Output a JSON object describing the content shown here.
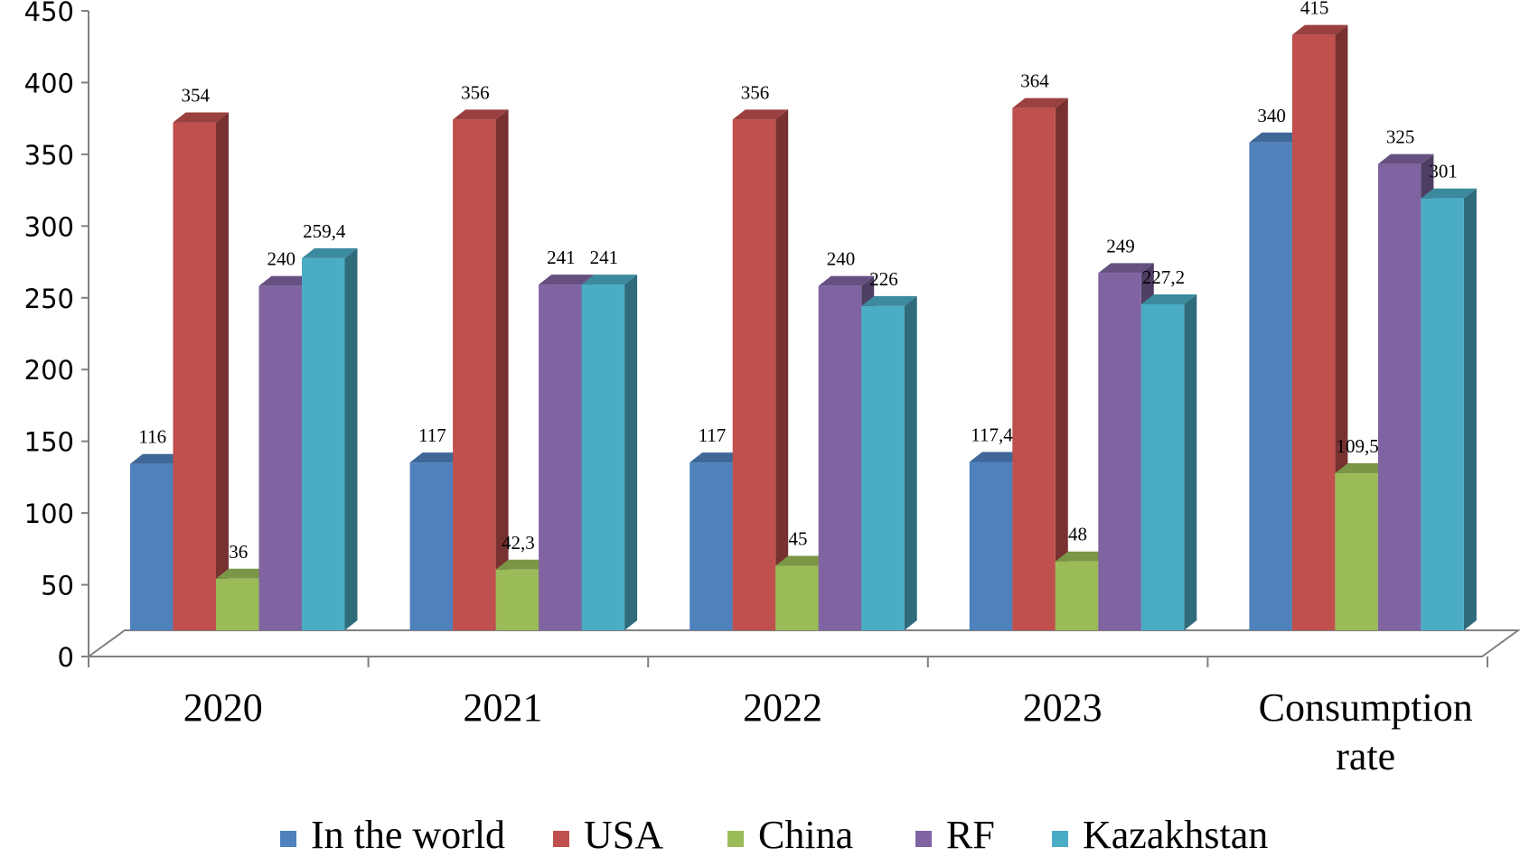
{
  "chart_data": {
    "type": "bar",
    "categories": [
      "2020",
      "2021",
      "2022",
      "2023",
      "Consumption rate"
    ],
    "series": [
      {
        "name": "In the world",
        "color": "#4F81BD",
        "values": [
          116,
          117,
          117,
          117.4,
          340
        ],
        "labels": [
          "116",
          "117",
          "117",
          "117,4",
          "340"
        ]
      },
      {
        "name": "USA",
        "color": "#C0504D",
        "values": [
          354,
          356,
          356,
          364,
          415
        ],
        "labels": [
          "354",
          "356",
          "356",
          "364",
          "415"
        ]
      },
      {
        "name": "China",
        "color": "#9BBB59",
        "values": [
          36,
          42.3,
          45,
          48,
          109.5
        ],
        "labels": [
          "36",
          "42,3",
          "45",
          "48",
          "109,5"
        ]
      },
      {
        "name": "RF",
        "color": "#8064A2",
        "values": [
          240,
          241,
          240,
          249,
          325
        ],
        "labels": [
          "240",
          "241",
          "240",
          "249",
          "325"
        ]
      },
      {
        "name": "Kazakhstan",
        "color": "#4BACC6",
        "values": [
          259.4,
          241,
          226,
          227.2,
          301
        ],
        "labels": [
          "259,4",
          "241",
          "226",
          "227,2",
          "301"
        ]
      }
    ],
    "ylim": [
      0,
      450
    ],
    "yticks": [
      "0",
      "50",
      "100",
      "150",
      "200",
      "250",
      "300",
      "350",
      "400",
      "450"
    ],
    "grid": false,
    "legend": "bottom",
    "style": "3d-clustered-column"
  }
}
